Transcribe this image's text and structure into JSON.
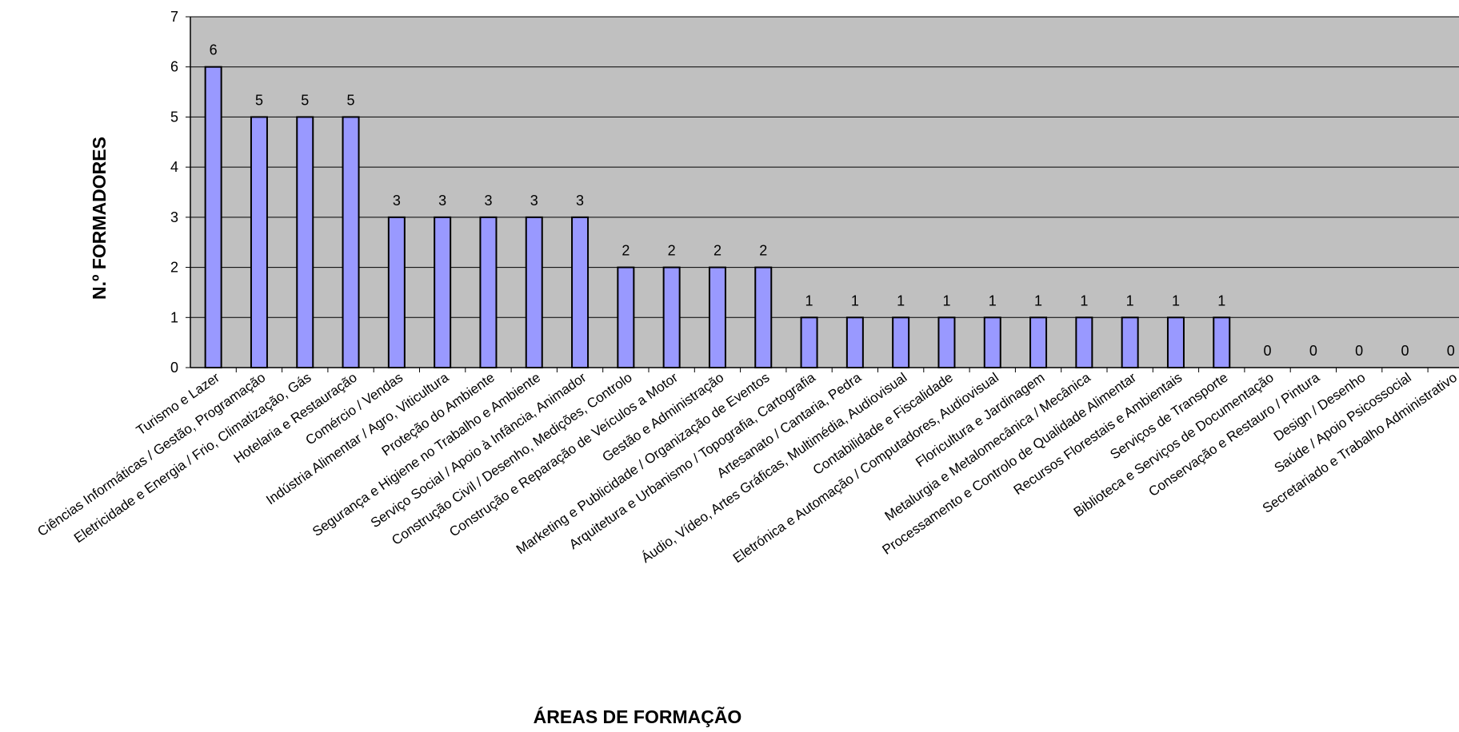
{
  "chart_data": {
    "type": "bar",
    "title": "",
    "xlabel": "ÁREAS DE FORMAÇÃO",
    "ylabel": "N.º FORMADORES",
    "ylim": [
      0,
      7
    ],
    "yticks": [
      0,
      1,
      2,
      3,
      4,
      5,
      6,
      7
    ],
    "grid": true,
    "legend": "none",
    "colors": {
      "plot_background": "#c0c0c0",
      "bar_fill": "#9999ff",
      "bar_stroke": "#000000",
      "gridline": "#000000"
    },
    "categories": [
      "Turismo e Lazer",
      "Ciências Informáticas / Gestão, Programação",
      "Eletricidade e Energia / Frio, Climatização, Gás",
      "Hotelaria e Restauração",
      "Comércio / Vendas",
      "Indústria Alimentar / Agro, Viticultura",
      "Proteção do Ambiente",
      "Segurança e Higiene no Trabalho e Ambiente",
      "Serviço Social / Apoio à Infância, Animador",
      "Construção Civil / Desenho, Medições, Controlo",
      "Construção e Reparação de Veículos a Motor",
      "Gestão e Administração",
      "Marketing e Publicidade / Organização de Eventos",
      "Arquitetura e Urbanismo / Topografia, Cartografia",
      "Artesanato / Cantaria, Pedra",
      "Áudio, Vídeo, Artes Gráficas, Multimédia, Audiovisual",
      "Contabilidade e Fiscalidade",
      "Eletrónica e Automação / Computadores, Audiovisual",
      "Floricultura e Jardinagem",
      "Metalurgia e Metalomecânica / Mecânica",
      "Processamento e Controlo de Qualidade Alimentar",
      "Recursos Florestais e Ambientais",
      "Serviços de Transporte",
      "Biblioteca e Serviços de Documentação",
      "Conservação e Restauro / Pintura",
      "Design / Desenho",
      "Saúde / Apoio Psicossocial",
      "Secretariado e Trabalho Administrativo"
    ],
    "values": [
      6,
      5,
      5,
      5,
      3,
      3,
      3,
      3,
      3,
      2,
      2,
      2,
      2,
      1,
      1,
      1,
      1,
      1,
      1,
      1,
      1,
      1,
      1,
      0,
      0,
      0,
      0,
      0
    ]
  }
}
